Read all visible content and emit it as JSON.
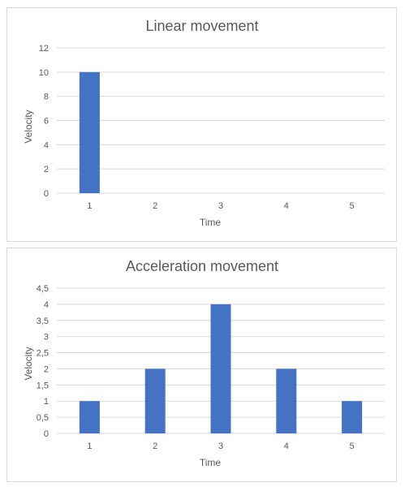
{
  "chart_data": [
    {
      "type": "bar",
      "title": "Linear movement",
      "xlabel": "Time",
      "ylabel": "Velocity",
      "categories": [
        "1",
        "2",
        "3",
        "4",
        "5"
      ],
      "values": [
        10,
        0,
        0,
        0,
        0
      ],
      "ylim": [
        0,
        12
      ],
      "yticks": [
        "0",
        "2",
        "4",
        "6",
        "8",
        "10",
        "12"
      ],
      "ytick_values": [
        0,
        2,
        4,
        6,
        8,
        10,
        12
      ],
      "grid": true,
      "bar_color": "#4472c4"
    },
    {
      "type": "bar",
      "title": "Acceleration movement",
      "xlabel": "Time",
      "ylabel": "Velocity",
      "categories": [
        "1",
        "2",
        "3",
        "4",
        "5"
      ],
      "values": [
        1,
        2,
        4,
        2,
        1
      ],
      "ylim": [
        0,
        4.5
      ],
      "yticks": [
        "0",
        "0,5",
        "1",
        "1,5",
        "2",
        "2,5",
        "3",
        "3,5",
        "4",
        "4,5"
      ],
      "ytick_values": [
        0,
        0.5,
        1,
        1.5,
        2,
        2.5,
        3,
        3.5,
        4,
        4.5
      ],
      "grid": true,
      "bar_color": "#4472c4"
    }
  ]
}
